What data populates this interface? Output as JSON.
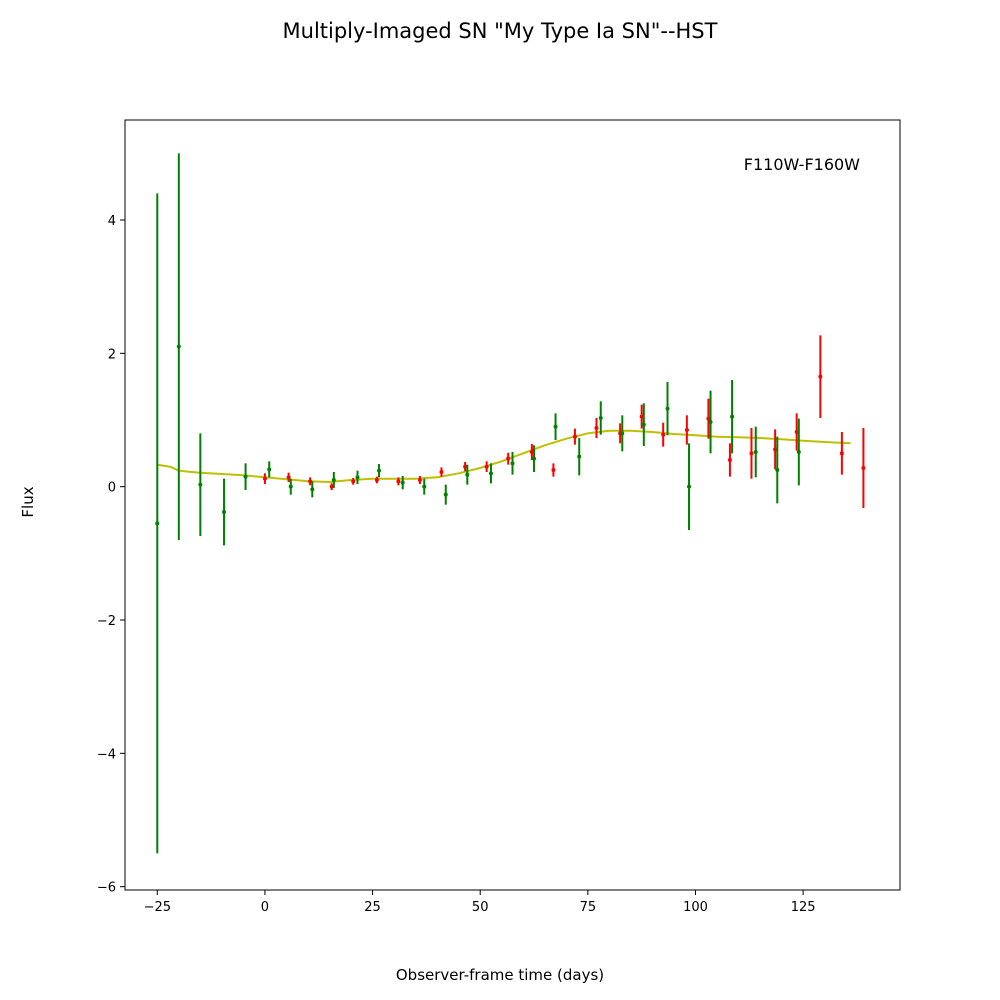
{
  "chart_data": {
    "type": "scatter",
    "title": "Multiply-Imaged SN \"My Type Ia SN\"--HST",
    "xlabel": "Observer-frame time (days)",
    "ylabel": "Flux",
    "annotation": "F110W-F160W",
    "xlim": [
      -32.5,
      147.5
    ],
    "ylim": [
      -6.05,
      5.5
    ],
    "xticks": [
      -25,
      0,
      25,
      50,
      75,
      100,
      125
    ],
    "yticks": [
      -6,
      -4,
      -2,
      0,
      2,
      4
    ],
    "colors": {
      "F110W": "#ff0000",
      "F160W": "#008000",
      "model": "#bfbf00"
    },
    "series": [
      {
        "name": "F110W",
        "x": [
          0,
          5.5,
          10.5,
          15.5,
          20.5,
          26,
          31,
          36,
          41,
          46.5,
          51.5,
          56.5,
          62,
          67,
          72,
          77,
          82.5,
          87.5,
          92.5,
          98,
          103,
          108,
          113,
          118.5,
          123.5,
          129,
          134,
          139
        ],
        "y": [
          0.12,
          0.14,
          0.08,
          0.0,
          0.08,
          0.1,
          0.08,
          0.1,
          0.22,
          0.3,
          0.3,
          0.42,
          0.52,
          0.25,
          0.75,
          0.88,
          0.8,
          1.05,
          0.78,
          0.85,
          1.02,
          0.4,
          0.5,
          0.56,
          0.82,
          1.65,
          0.5,
          0.28
        ],
        "err": [
          0.08,
          0.07,
          0.06,
          0.05,
          0.05,
          0.05,
          0.06,
          0.06,
          0.07,
          0.07,
          0.08,
          0.09,
          0.12,
          0.1,
          0.12,
          0.15,
          0.15,
          0.18,
          0.18,
          0.22,
          0.3,
          0.25,
          0.38,
          0.3,
          0.28,
          0.62,
          0.32,
          0.6
        ]
      },
      {
        "name": "F160W",
        "x": [
          -25,
          -20,
          -15,
          -9.5,
          -4.5,
          1,
          6,
          11,
          16,
          21.5,
          26.5,
          32,
          37,
          42,
          47,
          52.5,
          57.5,
          62.5,
          67.5,
          73,
          78,
          83,
          88,
          93.5,
          98.5,
          103.5,
          108.5,
          114,
          119,
          124
        ],
        "y": [
          -0.55,
          2.1,
          0.03,
          -0.38,
          0.15,
          0.26,
          0.0,
          -0.04,
          0.1,
          0.14,
          0.24,
          0.06,
          0.0,
          -0.12,
          0.18,
          0.2,
          0.35,
          0.42,
          0.9,
          0.45,
          1.03,
          0.8,
          0.93,
          1.17,
          0.0,
          0.97,
          1.05,
          0.52,
          0.25,
          0.52
        ]
      }
    ],
    "f160w_err": [
      4.95,
      2.9,
      0.77,
      0.5,
      0.2,
      0.12,
      0.12,
      0.12,
      0.12,
      0.1,
      0.1,
      0.1,
      0.12,
      0.15,
      0.15,
      0.15,
      0.17,
      0.2,
      0.2,
      0.28,
      0.25,
      0.27,
      0.32,
      0.4,
      0.65,
      0.47,
      0.55,
      0.38,
      0.5,
      0.5
    ],
    "model": {
      "name": "model",
      "x": [
        -25,
        -22,
        -20,
        -17,
        -15,
        -10,
        -5,
        0,
        5,
        10,
        15,
        20,
        25,
        30,
        35,
        40,
        45,
        50,
        55,
        60,
        65,
        70,
        75,
        80,
        85,
        90,
        95,
        100,
        105,
        110,
        115,
        120,
        125,
        130,
        136
      ],
      "y": [
        0.33,
        0.3,
        0.24,
        0.22,
        0.21,
        0.19,
        0.17,
        0.14,
        0.11,
        0.08,
        0.07,
        0.1,
        0.12,
        0.12,
        0.12,
        0.14,
        0.2,
        0.28,
        0.38,
        0.5,
        0.62,
        0.72,
        0.8,
        0.84,
        0.84,
        0.82,
        0.79,
        0.77,
        0.75,
        0.74,
        0.73,
        0.71,
        0.69,
        0.67,
        0.65
      ]
    }
  }
}
